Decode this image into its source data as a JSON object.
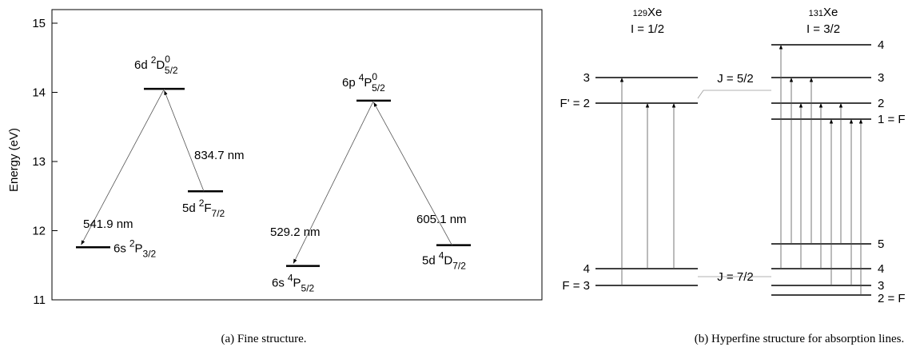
{
  "fine_structure": {
    "y_axis_label": "Energy (eV)",
    "ylim": [
      11,
      15
    ],
    "yticks": [
      11,
      12,
      13,
      14,
      15
    ],
    "levels": [
      {
        "config": "6d",
        "mult": "2",
        "term": "D",
        "parity": "0",
        "j": "5/2",
        "energy": 14.05
      },
      {
        "config": "5d",
        "mult": "2",
        "term": "F",
        "j": "7/2",
        "energy": 12.57
      },
      {
        "config": "6s",
        "mult": "2",
        "term": "P",
        "j": "3/2",
        "energy": 11.76
      },
      {
        "config": "6p",
        "mult": "4",
        "term": "P",
        "parity": "0",
        "j": "5/2",
        "energy": 13.88
      },
      {
        "config": "6s",
        "mult": "4",
        "term": "P",
        "j": "5/2",
        "energy": 11.49
      },
      {
        "config": "5d",
        "mult": "4",
        "term": "D",
        "j": "7/2",
        "energy": 11.79
      }
    ],
    "transitions": [
      "541.9 nm",
      "834.7 nm",
      "529.2 nm",
      "605.1 nm"
    ],
    "caption": "(a) Fine structure."
  },
  "hyperfine": {
    "isotope_a": {
      "mass": "129",
      "symbol": "Xe",
      "spin": "I = 1/2"
    },
    "isotope_b": {
      "mass": "131",
      "symbol": "Xe",
      "spin": "I = 3/2"
    },
    "levels_a": [
      "3",
      "F' = 2",
      "4",
      "F = 3"
    ],
    "j_labels": [
      "J = 5/2",
      "J = 7/2"
    ],
    "levels_b": [
      "4",
      "3",
      "2",
      "1 = F",
      "5",
      "4",
      "3",
      "2 = F"
    ],
    "caption": "(b) Hyperfine structure for absorption lines."
  }
}
